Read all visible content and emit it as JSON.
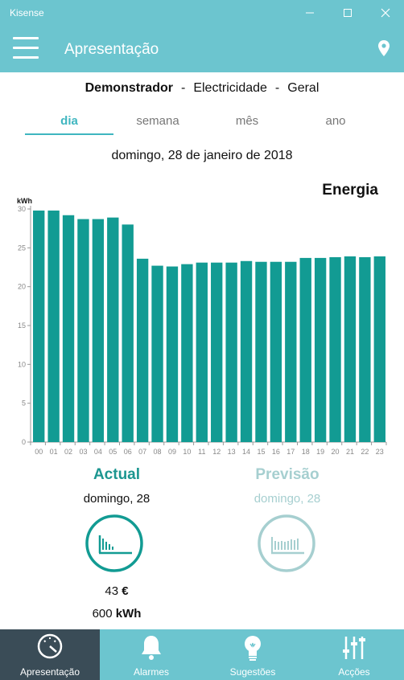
{
  "window": {
    "title": "Kisense"
  },
  "app_bar": {
    "title": "Apresentação"
  },
  "breadcrumb": {
    "device": "Demonstrador",
    "sep": "-",
    "type": "Electricidade",
    "scope": "Geral"
  },
  "tabs": [
    {
      "label": "dia",
      "active": true
    },
    {
      "label": "semana"
    },
    {
      "label": "mês"
    },
    {
      "label": "ano"
    }
  ],
  "date_label": "domingo, 28 de janeiro de 2018",
  "chart_title": "Energia",
  "chart_data": {
    "type": "bar",
    "title": "Energia",
    "ylabel": "kWh",
    "xlabel": "",
    "ylim": [
      0,
      30
    ],
    "yticks": [
      0,
      5,
      10,
      15,
      20,
      25,
      30
    ],
    "categories": [
      "00",
      "01",
      "02",
      "03",
      "04",
      "05",
      "06",
      "07",
      "08",
      "09",
      "10",
      "11",
      "12",
      "13",
      "14",
      "15",
      "16",
      "17",
      "18",
      "19",
      "20",
      "21",
      "22",
      "23"
    ],
    "values": [
      29.8,
      29.8,
      29.2,
      28.7,
      28.7,
      28.9,
      28.0,
      23.6,
      22.7,
      22.6,
      22.9,
      23.1,
      23.1,
      23.1,
      23.3,
      23.2,
      23.2,
      23.2,
      23.7,
      23.7,
      23.8,
      23.9,
      23.8,
      23.9
    ],
    "color": "#129b93",
    "grid": false
  },
  "actual": {
    "title": "Actual",
    "date": "domingo, 28",
    "cost_value": "43",
    "cost_unit": "€",
    "energy_value": "600",
    "energy_unit": "kWh"
  },
  "forecast": {
    "title": "Previsão",
    "date": "domingo, 28"
  },
  "nav": [
    {
      "label": "Apresentação",
      "icon": "gauge-icon",
      "active": true
    },
    {
      "label": "Alarmes",
      "icon": "bell-icon"
    },
    {
      "label": "Sugestões",
      "icon": "lightbulb-icon"
    },
    {
      "label": "Acções",
      "icon": "sliders-icon"
    }
  ],
  "colors": {
    "header": "#6cc5cf",
    "accent": "#3fb6c0",
    "bar": "#129b93",
    "nav_active": "#3a4c57",
    "forecast": "#a6cfd0"
  }
}
